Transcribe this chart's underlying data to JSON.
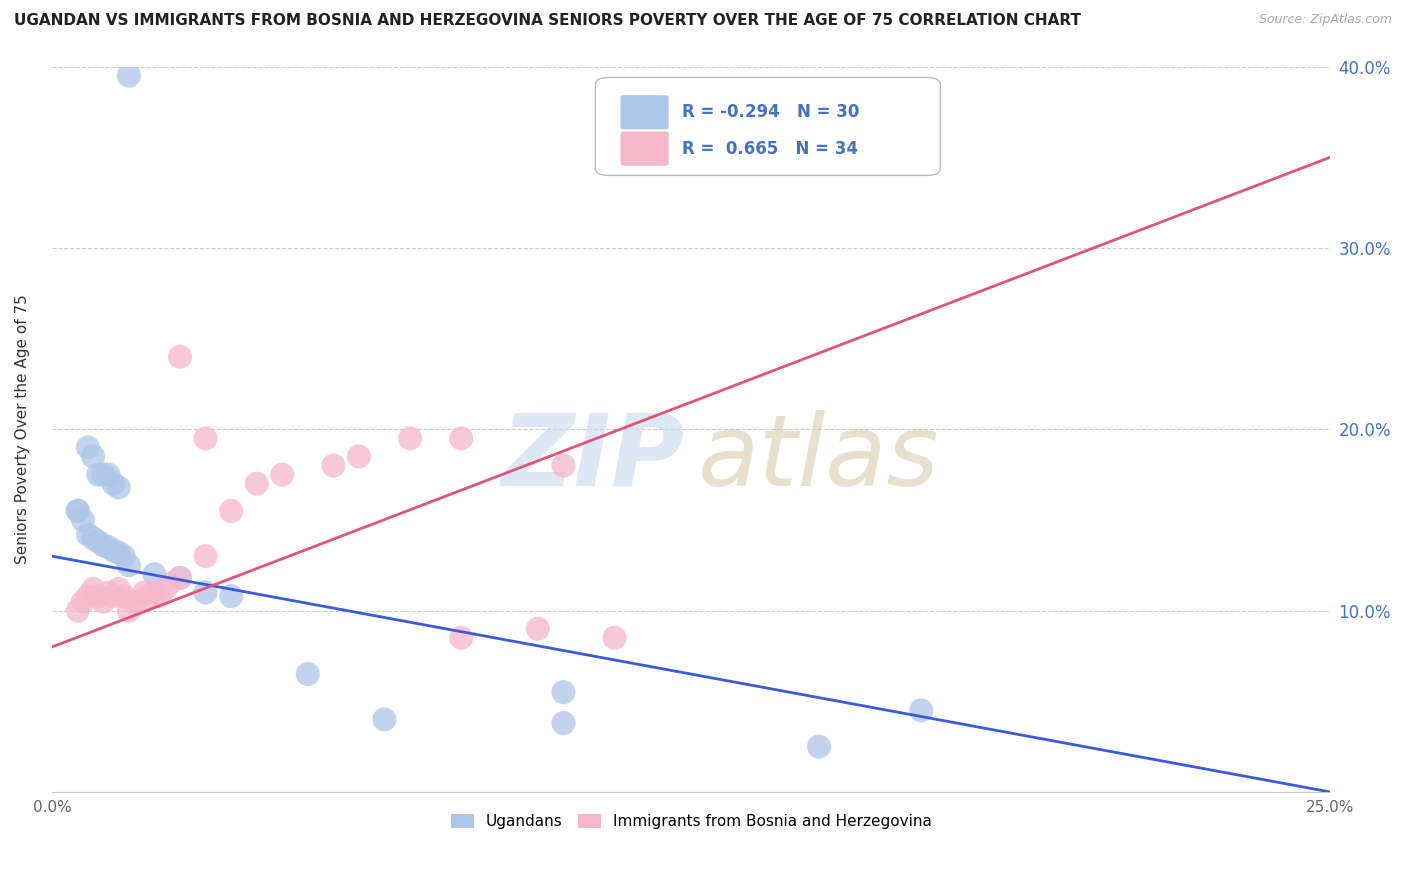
{
  "title": "UGANDAN VS IMMIGRANTS FROM BOSNIA AND HERZEGOVINA SENIORS POVERTY OVER THE AGE OF 75 CORRELATION CHART",
  "source": "Source: ZipAtlas.com",
  "ylabel": "Seniors Poverty Over the Age of 75",
  "blue_label": "Ugandans",
  "pink_label": "Immigrants from Bosnia and Herzegovina",
  "blue_R": -0.294,
  "blue_N": 30,
  "pink_R": 0.665,
  "pink_N": 34,
  "blue_color": "#aec6e8",
  "pink_color": "#f5b8cb",
  "blue_line_color": "#3b5bdb",
  "pink_line_color": "#e05575",
  "xlim": [
    0.0,
    0.25
  ],
  "ylim": [
    0.0,
    0.4
  ],
  "xticks": [
    0.0,
    0.05,
    0.1,
    0.15,
    0.2,
    0.25
  ],
  "yticks": [
    0.0,
    0.1,
    0.2,
    0.3,
    0.4
  ],
  "xticklabels": [
    "0.0%",
    "",
    "",
    "",
    "",
    "25.0%"
  ],
  "right_yticklabels": [
    "",
    "10.0%",
    "20.0%",
    "30.0%",
    "40.0%"
  ],
  "blue_x": [
    0.015,
    0.005,
    0.007,
    0.008,
    0.009,
    0.01,
    0.011,
    0.012,
    0.013,
    0.005,
    0.006,
    0.007,
    0.008,
    0.009,
    0.01,
    0.011,
    0.012,
    0.013,
    0.014,
    0.015,
    0.02,
    0.025,
    0.03,
    0.035,
    0.05,
    0.065,
    0.1,
    0.15,
    0.17,
    0.1
  ],
  "blue_y": [
    0.395,
    0.155,
    0.19,
    0.185,
    0.175,
    0.175,
    0.175,
    0.17,
    0.168,
    0.155,
    0.15,
    0.142,
    0.14,
    0.138,
    0.136,
    0.135,
    0.133,
    0.132,
    0.13,
    0.125,
    0.12,
    0.118,
    0.11,
    0.108,
    0.065,
    0.04,
    0.055,
    0.025,
    0.045,
    0.038
  ],
  "pink_x": [
    0.005,
    0.006,
    0.007,
    0.008,
    0.009,
    0.01,
    0.011,
    0.012,
    0.013,
    0.014,
    0.015,
    0.016,
    0.017,
    0.018,
    0.019,
    0.02,
    0.021,
    0.022,
    0.023,
    0.025,
    0.03,
    0.035,
    0.04,
    0.045,
    0.055,
    0.06,
    0.07,
    0.08,
    0.1,
    0.11,
    0.025,
    0.03,
    0.08,
    0.095
  ],
  "pink_y": [
    0.1,
    0.105,
    0.108,
    0.112,
    0.108,
    0.105,
    0.11,
    0.108,
    0.112,
    0.108,
    0.1,
    0.105,
    0.105,
    0.11,
    0.108,
    0.11,
    0.108,
    0.112,
    0.115,
    0.118,
    0.13,
    0.155,
    0.17,
    0.175,
    0.18,
    0.185,
    0.195,
    0.195,
    0.18,
    0.085,
    0.24,
    0.195,
    0.085,
    0.09
  ]
}
